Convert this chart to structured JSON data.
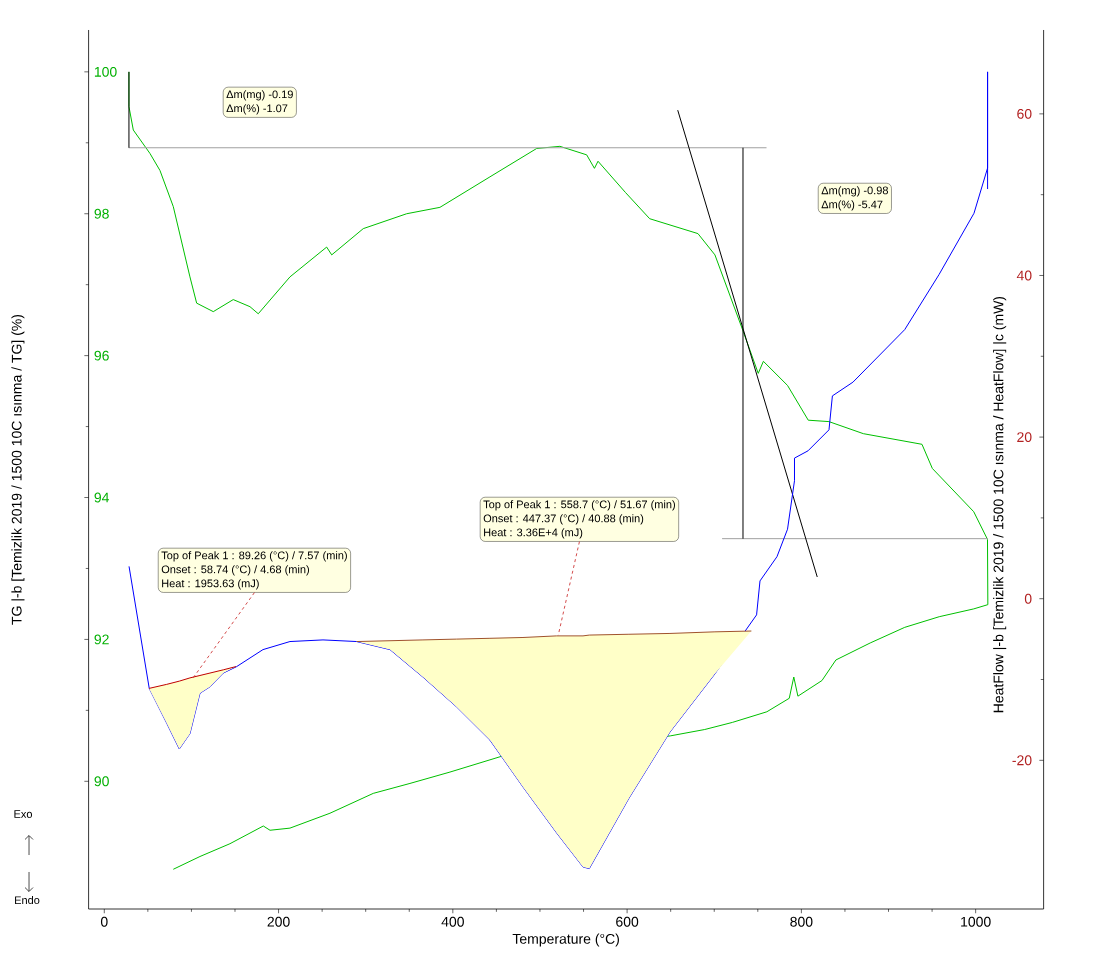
{
  "chart_data": {
    "type": "line",
    "xlabel": "Temperature (°C)",
    "ylabel": "TG |-b [Temizlik 2019 / 1500 10C ısınma / TG] (%)",
    "y2label": "HeatFlow |-b [Temizlik 2019 / 1500 10C ısınma / HeatFlow] |c (mW)",
    "xlim": [
      -18,
      1078
    ],
    "ylim": [
      88.2,
      100.59
    ],
    "y2lim": [
      -38.4,
      70.38
    ],
    "xticks": [
      0,
      200,
      400,
      600,
      800,
      1000
    ],
    "yticks": [
      90,
      92,
      94,
      96,
      98,
      100
    ],
    "y2ticks": [
      -20,
      0,
      20,
      40,
      60
    ],
    "marker": "none",
    "series": [
      {
        "color": "#00c000",
        "x": [
          28.3,
          28.3,
          33.3,
          52.4,
          63.9,
          79.2,
          98.3,
          106.0,
          125.1,
          148.0,
          167.2,
          176.7,
          213.1,
          255.2,
          261.0,
          297.2,
          347.0,
          385.2,
          442.6,
          496.2,
          522.9,
          553.6,
          562.5,
          566.6,
          598.1,
          625.9,
          681.3,
          700.8,
          732.7,
          750.5,
          756.4,
          784.1,
          807.9,
          831.6,
          871.1,
          938.4,
          950.3,
          997.8,
          1013.6,
          1014.0,
          997.8,
          958.2,
          918.6,
          879.0,
          839.6,
          823.6,
          796.0,
          791.3,
          786.1,
          760.4,
          720.8,
          689.1,
          649.5,
          457.9,
          396.7,
          350.8,
          308.7,
          259.0,
          213.1,
          190.2,
          182.5,
          144.2,
          109.8,
          79.2
        ],
        "values": [
          100.0,
          99.51,
          99.18,
          98.85,
          98.61,
          98.1,
          97.11,
          96.74,
          96.62,
          96.79,
          96.69,
          96.59,
          97.11,
          97.53,
          97.42,
          97.79,
          98.0,
          98.09,
          98.52,
          98.92,
          98.95,
          98.83,
          98.64,
          98.74,
          98.3,
          97.93,
          97.72,
          97.42,
          96.36,
          95.75,
          95.92,
          95.58,
          95.09,
          95.07,
          94.9,
          94.75,
          94.41,
          93.8,
          93.41,
          92.49,
          92.43,
          92.32,
          92.17,
          91.95,
          91.71,
          91.42,
          91.2,
          91.47,
          91.17,
          90.98,
          90.83,
          90.73,
          90.64,
          90.36,
          90.13,
          89.97,
          89.83,
          89.55,
          89.34,
          89.31,
          89.37,
          89.12,
          88.94,
          88.76
        ]
      },
      {
        "color": "#0000ff",
        "axis": "y2",
        "x": [
          28.4,
          51.6,
          71.6,
          86.1,
          98.3,
          109.8,
          121.3,
          136.6,
          151.9,
          182.1,
          213.1,
          251.0,
          289.6,
          327.9,
          365.7,
          404.4,
          442.6,
          480.5,
          519.2,
          549.4,
          556.6,
          602.1,
          649.2,
          700.8,
          748.6,
          752.5,
          772.0,
          784.1,
          792.1,
          792.1,
          807.6,
          831.7,
          835.6,
          859.2,
          918.6,
          957.9,
          998.1,
          1013.7,
          1013.7,
          1013.7
        ],
        "values": [
          4.0,
          -11.1,
          -15.4,
          -18.6,
          -16.7,
          -11.7,
          -10.9,
          -9.2,
          -8.4,
          -6.3,
          -5.3,
          -5.1,
          -5.3,
          -6.3,
          -9.7,
          -13.4,
          -17.5,
          -23.3,
          -29.0,
          -33.2,
          -33.4,
          -24.7,
          -16.5,
          -9.3,
          -2.0,
          2.2,
          5.2,
          8.6,
          14.6,
          17.4,
          18.3,
          20.9,
          25.1,
          26.8,
          33.3,
          40.1,
          47.7,
          53.3,
          65.2,
          50.7
        ]
      },
      {
        "color": "#a0a0a0",
        "x": [
          28,
          760
        ],
        "values": [
          98.93,
          98.93
        ]
      },
      {
        "color": "#a0a0a0",
        "x": [
          709,
          1014
        ],
        "values": [
          93.42,
          93.42
        ]
      },
      {
        "color": "#000000",
        "x": [
          658.1,
          818.2
        ],
        "values": [
          99.46,
          92.88
        ]
      },
      {
        "color": "#000000",
        "x": [
          28.3,
          28.3
        ],
        "values": [
          100.0,
          98.93
        ]
      },
      {
        "color": "#000000",
        "x": [
          733,
          733
        ],
        "values": [
          98.93,
          93.42
        ]
      },
      {
        "color": "#c00000",
        "axis": "y2",
        "x": [
          51.4,
          71.6,
          86.1,
          98.3,
          109.8,
          121.3,
          136.6,
          151.1
        ],
        "values": [
          -11.1,
          -10.6,
          -10.2,
          -9.8,
          -9.5,
          -9.2,
          -8.8,
          -8.4
        ],
        "upper": [
          -11.1,
          -10.6,
          -10.2,
          -9.8,
          -9.5,
          -9.2,
          -8.8,
          -8.4
        ],
        "lower": [
          -11.1,
          -15.4,
          -18.6,
          -16.7,
          -11.7,
          -10.9,
          -9.2,
          -8.4
        ]
      },
      {
        "color": "#a0522d",
        "axis": "y2",
        "x": [
          289.6,
          327.9,
          365.7,
          404.4,
          442.6,
          480.5,
          519.2,
          549.4,
          556.6,
          602.1,
          649.2,
          700.8,
          742.6
        ],
        "values": [
          -5.3,
          -5.2,
          -5.1,
          -5.0,
          -4.9,
          -4.8,
          -4.6,
          -4.6,
          -4.5,
          -4.4,
          -4.3,
          -4.1,
          -4.0
        ],
        "upper": [
          -5.3,
          -5.2,
          -5.1,
          -5.0,
          -4.9,
          -4.8,
          -4.6,
          -4.6,
          -4.5,
          -4.4,
          -4.3,
          -4.1,
          -4.0
        ],
        "lower": [
          -5.3,
          -6.3,
          -9.7,
          -13.4,
          -17.5,
          -23.3,
          -29.0,
          -33.2,
          -33.4,
          -24.7,
          -16.5,
          -9.3,
          -4.0
        ]
      }
    ],
    "annotations": [
      "Δm(mg) -0.19",
      "Δm(%) -1.07",
      "Δm(mg) -0.98",
      "Δm(%) -5.47",
      "Top of Peak 1 :  89.26 (°C) / 7.57 (min)",
      "Onset :  58.74 (°C) / 4.68 (min)",
      {
        "text": "Heat :  1953.63 (mJ)",
        "x": 102.1,
        "y": 91.46
      },
      "Top of Peak 1 :  558.7 (°C) / 51.67 (min)",
      "Onset :  447.37 (°C) / 40.88 (min)",
      {
        "text": "Heat :  3.36E+4 (mJ)",
        "x": 521.0,
        "y": 92.06
      },
      "Exo",
      "Endo"
    ]
  }
}
